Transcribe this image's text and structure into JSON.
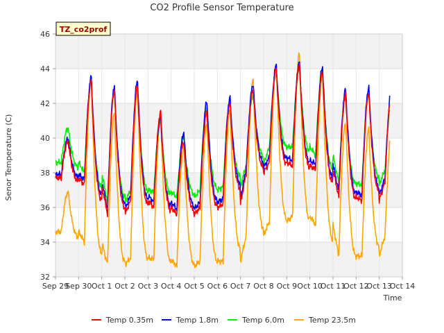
{
  "chart_data": {
    "type": "line",
    "title": "CO2 Profile Sensor Temperature",
    "xlabel": "Time",
    "ylabel": "Senor Temperature (C)",
    "station_label": "TZ_co2prof",
    "x_unit": "date",
    "x_ticks": [
      "Sep 29",
      "Sep 30",
      "Oct 1",
      "Oct 2",
      "Oct 3",
      "Oct 4",
      "Oct 5",
      "Oct 6",
      "Oct 7",
      "Oct 8",
      "Oct 9",
      "Oct 10",
      "Oct 11",
      "Oct 12",
      "Oct 13",
      "Oct 14"
    ],
    "xlim": [
      "Sep 29",
      "Oct 14"
    ],
    "y_ticks": [
      32,
      34,
      36,
      38,
      40,
      42,
      44,
      46
    ],
    "ylim": [
      32,
      46
    ],
    "grid": true,
    "legend_position": "bottom",
    "series": [
      {
        "name": "Temp 0.35m",
        "color": "#ff0000",
        "daily_min": [
          37.7,
          37.3,
          35.6,
          36.4,
          36.0,
          35.6,
          36.0,
          36.2,
          38.0,
          38.6,
          38.4,
          38.2,
          36.6,
          36.4,
          37.5
        ],
        "daily_max": [
          39.8,
          43.3,
          42.8,
          43.0,
          41.5,
          39.8,
          41.5,
          42.0,
          42.8,
          44.0,
          44.2,
          43.8,
          42.5,
          42.6,
          42.8
        ]
      },
      {
        "name": "Temp 1.8m",
        "color": "#0000ff",
        "daily_min": [
          37.9,
          37.6,
          35.9,
          36.7,
          36.3,
          35.9,
          36.3,
          36.5,
          38.3,
          38.9,
          38.7,
          38.5,
          36.9,
          36.7,
          37.7
        ],
        "daily_max": [
          40.0,
          43.5,
          43.0,
          43.3,
          41.2,
          40.3,
          42.1,
          42.3,
          43.1,
          44.2,
          44.4,
          44.1,
          42.8,
          42.9,
          43.0
        ]
      },
      {
        "name": "Temp 6.0m",
        "color": "#00ee00",
        "daily_min": [
          38.6,
          38.0,
          36.3,
          37.0,
          36.9,
          36.6,
          37.0,
          37.2,
          38.5,
          39.5,
          39.5,
          39.0,
          37.4,
          37.3,
          38.2
        ],
        "daily_max": [
          40.6,
          43.2,
          42.7,
          42.9,
          41.0,
          40.0,
          41.8,
          42.0,
          42.5,
          44.0,
          44.0,
          43.9,
          42.3,
          42.5,
          42.2
        ]
      },
      {
        "name": "Temp 23.5m",
        "color": "#ffa500",
        "daily_min": [
          34.6,
          34.0,
          32.7,
          33.1,
          33.0,
          32.6,
          32.9,
          32.9,
          34.4,
          35.2,
          35.5,
          35.0,
          33.2,
          33.2,
          34.4
        ],
        "daily_max": [
          36.9,
          43.4,
          41.4,
          42.8,
          41.2,
          39.5,
          40.9,
          41.6,
          43.4,
          44.2,
          44.9,
          43.8,
          40.9,
          40.5,
          40.5
        ]
      }
    ]
  }
}
